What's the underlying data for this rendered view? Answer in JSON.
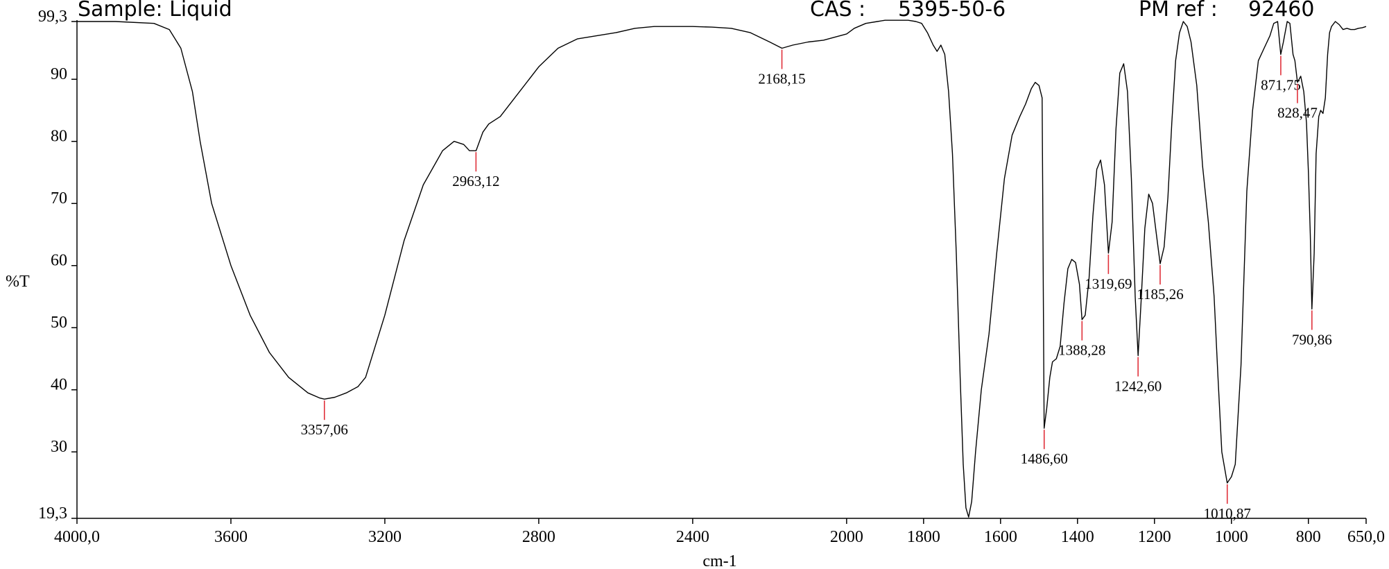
{
  "header": {
    "sample": "Sample: Liquid",
    "cas_label": "CAS :",
    "cas_value": "5395-50-6",
    "ref_label": "PM ref :",
    "ref_value": "92460"
  },
  "colors": {
    "trace": "#000000",
    "peak_marker": "#e0303a",
    "axis": "#000000"
  },
  "chart_data": {
    "type": "line",
    "xlabel": "cm-1",
    "ylabel": "%T",
    "xlim": [
      4000,
      650
    ],
    "ylim": [
      19.3,
      99.3
    ],
    "x_reversed": true,
    "grid": false,
    "x_ticks": [
      4000,
      3600,
      3200,
      2800,
      2400,
      2000,
      1800,
      1600,
      1400,
      1200,
      1000,
      800,
      650
    ],
    "x_tick_labels": [
      "4000,0",
      "3600",
      "3200",
      "2800",
      "2400",
      "2000",
      "1800",
      "1600",
      "1400",
      "1200",
      "1000",
      "800",
      "650,0"
    ],
    "y_ticks": [
      19.3,
      30,
      40,
      50,
      60,
      70,
      80,
      90,
      99.3
    ],
    "y_tick_labels": [
      "19,3",
      "30",
      "40",
      "50",
      "60",
      "70",
      "80",
      "90",
      "99,3"
    ],
    "peaks": [
      {
        "x": 3357.06,
        "y": 38.5,
        "label": "3357,06"
      },
      {
        "x": 2963.12,
        "y": 78.5,
        "label": "2963,12"
      },
      {
        "x": 2168.15,
        "y": 95.0,
        "label": "2168,15"
      },
      {
        "x": 1486.6,
        "y": 33.8,
        "label": "1486,60"
      },
      {
        "x": 1388.28,
        "y": 51.3,
        "label": "1388,28"
      },
      {
        "x": 1319.69,
        "y": 62.0,
        "label": "1319,69"
      },
      {
        "x": 1242.6,
        "y": 45.5,
        "label": "1242,60"
      },
      {
        "x": 1185.26,
        "y": 60.3,
        "label": "1185,26"
      },
      {
        "x": 1010.87,
        "y": 25.0,
        "label": "1010,87"
      },
      {
        "x": 871.75,
        "y": 94.0,
        "label": "871,75"
      },
      {
        "x": 828.47,
        "y": 89.5,
        "label": "828,47"
      },
      {
        "x": 790.86,
        "y": 53.0,
        "label": "790,86"
      }
    ],
    "series": [
      {
        "x": [
          4000,
          3900,
          3800,
          3760,
          3730,
          3700,
          3680,
          3650,
          3600,
          3550,
          3500,
          3450,
          3400,
          3370,
          3357,
          3330,
          3300,
          3270,
          3250,
          3200,
          3150,
          3100,
          3050,
          3020,
          2995,
          2980,
          2963,
          2945,
          2930,
          2900,
          2850,
          2800,
          2750,
          2700,
          2650,
          2600,
          2550,
          2500,
          2450,
          2400,
          2350,
          2300,
          2250,
          2200,
          2168,
          2140,
          2100,
          2060,
          2030,
          2000,
          1980,
          1950,
          1920,
          1900,
          1870,
          1840,
          1820,
          1805,
          1790,
          1775,
          1765,
          1755,
          1745,
          1735,
          1725,
          1715,
          1705,
          1697,
          1690,
          1683,
          1675,
          1665,
          1650,
          1630,
          1610,
          1590,
          1570,
          1550,
          1535,
          1520,
          1510,
          1500,
          1492,
          1486.6,
          1480,
          1472,
          1465,
          1455,
          1445,
          1435,
          1425,
          1415,
          1405,
          1395,
          1388.28,
          1380,
          1370,
          1360,
          1350,
          1340,
          1330,
          1319.69,
          1310,
          1300,
          1290,
          1280,
          1270,
          1260,
          1250,
          1242.6,
          1235,
          1225,
          1215,
          1205,
          1195,
          1185.26,
          1175,
          1165,
          1155,
          1145,
          1135,
          1125,
          1115,
          1105,
          1090,
          1075,
          1060,
          1045,
          1035,
          1025,
          1010.87,
          1000,
          990,
          975,
          960,
          945,
          930,
          915,
          900,
          890,
          880,
          871.75,
          865,
          855,
          848,
          840,
          835,
          828.47,
          820,
          812,
          805,
          800,
          795,
          790.86,
          785,
          780,
          773,
          768,
          762,
          756,
          750,
          745,
          740,
          730,
          720,
          710,
          700,
          690,
          680,
          670,
          660,
          650
        ],
        "y": [
          99.3,
          99.3,
          99.0,
          98.0,
          95.0,
          88.0,
          80.0,
          70.0,
          60.0,
          52.0,
          46.0,
          42.0,
          39.5,
          38.7,
          38.5,
          38.8,
          39.5,
          40.5,
          42.0,
          52.0,
          64.0,
          73.0,
          78.5,
          80.0,
          79.5,
          78.5,
          78.5,
          81.5,
          82.8,
          84.0,
          88.0,
          92.0,
          95.0,
          96.5,
          97.0,
          97.5,
          98.2,
          98.5,
          98.5,
          98.5,
          98.4,
          98.2,
          97.5,
          96.0,
          95.0,
          95.5,
          96.0,
          96.3,
          96.8,
          97.3,
          98.2,
          99.0,
          99.3,
          99.5,
          99.5,
          99.5,
          99.3,
          99.0,
          97.5,
          95.5,
          94.5,
          95.5,
          94.0,
          88.0,
          78.0,
          62.0,
          42.0,
          28.0,
          21.0,
          19.5,
          22.0,
          30.0,
          40.0,
          49.0,
          62.0,
          74.0,
          81.0,
          84.0,
          86.0,
          88.5,
          89.5,
          89.0,
          87.0,
          33.8,
          37.0,
          42.0,
          44.5,
          45.0,
          47.0,
          54.0,
          59.5,
          61.0,
          60.5,
          57.0,
          51.3,
          52.0,
          58.0,
          68.0,
          75.5,
          77.0,
          73.0,
          62.0,
          67.0,
          82.0,
          91.0,
          92.5,
          88.0,
          74.0,
          55.0,
          45.5,
          54.0,
          66.0,
          71.5,
          70.0,
          65.0,
          60.3,
          63.0,
          71.0,
          83.0,
          93.0,
          97.5,
          99.3,
          98.5,
          96.0,
          89.0,
          76.0,
          67.0,
          55.0,
          42.0,
          30.0,
          25.0,
          26.0,
          28.0,
          44.0,
          72.0,
          85.0,
          93.0,
          95.0,
          97.0,
          99.0,
          99.3,
          94.0,
          96.0,
          99.3,
          99.0,
          94.0,
          93.0,
          89.5,
          90.5,
          88.0,
          83.0,
          75.0,
          65.0,
          53.0,
          62.0,
          78.0,
          84.0,
          85.0,
          84.5,
          87.0,
          94.0,
          97.5,
          98.5,
          99.3,
          98.8,
          98.0,
          98.2,
          98.0,
          98.0,
          98.2,
          98.3,
          98.5
        ]
      }
    ]
  }
}
